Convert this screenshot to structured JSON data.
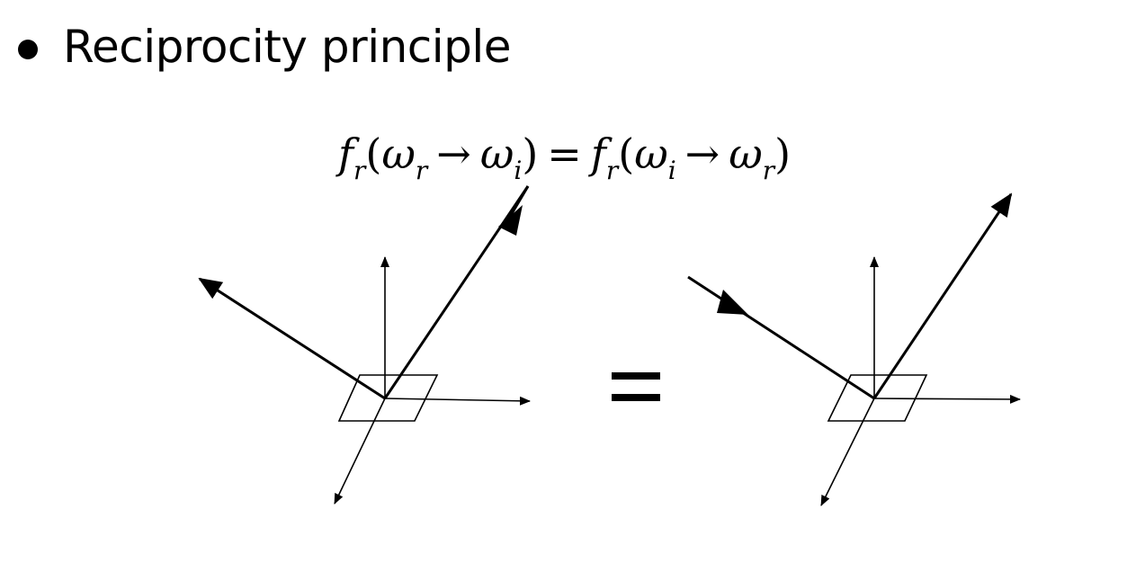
{
  "slide": {
    "bullet_text": "Reciprocity principle"
  },
  "equation": {
    "lhs_function": "f",
    "lhs_function_sub": "r",
    "lhs_open": "(",
    "lhs_from": "ω",
    "lhs_from_sub": "r",
    "lhs_arrow": "→",
    "lhs_to": "ω",
    "lhs_to_sub": "i",
    "lhs_close": ")",
    "equals": "=",
    "rhs_function": "f",
    "rhs_function_sub": "r",
    "rhs_open": "(",
    "rhs_from": "ω",
    "rhs_from_sub": "i",
    "rhs_arrow": "→",
    "rhs_to": "ω",
    "rhs_to_sub": "r",
    "rhs_close": ")"
  },
  "diagrams": {
    "left": {
      "incoming_direction": "upper-right",
      "outgoing_direction": "upper-left"
    },
    "right": {
      "incoming_direction": "upper-left",
      "outgoing_direction": "upper-right"
    }
  },
  "colors": {
    "ink": "#000000",
    "background": "#ffffff"
  }
}
